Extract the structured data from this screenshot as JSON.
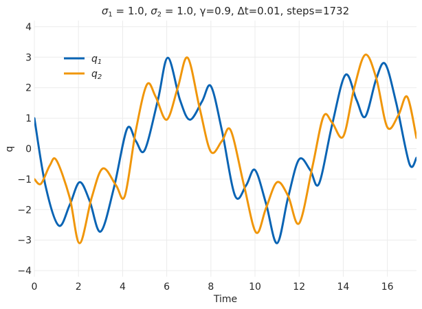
{
  "chart_data": {
    "type": "line",
    "title": "σ₁ = 1.0, σ₂ = 1.0, γ=0.9, Δt=0.01, steps=1732",
    "title_parts": {
      "s1_sym": "σ",
      "s1_sub": "1",
      "s1_val": " = 1.0, ",
      "s2_sym": "σ",
      "s2_sub": "2",
      "s2_val": " = 1.0, γ=0.9, Δt=0.01, steps=1732"
    },
    "xlabel": "Time",
    "ylabel": "q",
    "xlim": [
      0,
      17.32
    ],
    "ylim": [
      -4.2,
      4.2
    ],
    "xticks": [
      0,
      2,
      4,
      6,
      8,
      10,
      12,
      14,
      16
    ],
    "yticks": [
      -4,
      -3,
      -2,
      -1,
      0,
      1,
      2,
      3,
      4
    ],
    "grid": true,
    "legend_position": "upper-left",
    "series": [
      {
        "name": "q1",
        "label_main": "q",
        "label_sub": "1",
        "color": "#0a64b4",
        "x": [
          0,
          0.5,
          1.1,
          1.6,
          2.05,
          2.5,
          3.0,
          3.6,
          4.2,
          4.6,
          5.0,
          5.6,
          6.05,
          6.6,
          7.05,
          7.6,
          8.0,
          8.5,
          9.1,
          9.6,
          10.0,
          10.5,
          11.0,
          11.5,
          12.0,
          12.5,
          12.9,
          13.5,
          14.1,
          14.6,
          15.0,
          15.5,
          15.9,
          16.4,
          17.0,
          17.32
        ],
        "y": [
          1.0,
          -1.2,
          -2.52,
          -1.85,
          -1.1,
          -1.7,
          -2.72,
          -1.3,
          0.65,
          0.25,
          -0.05,
          1.6,
          2.98,
          1.6,
          0.95,
          1.55,
          2.05,
          0.6,
          -1.55,
          -1.2,
          -0.7,
          -1.8,
          -3.1,
          -1.6,
          -0.35,
          -0.7,
          -1.15,
          0.8,
          2.42,
          1.6,
          1.05,
          2.3,
          2.78,
          1.5,
          -0.5,
          -0.3
        ]
      },
      {
        "name": "q2",
        "label_main": "q",
        "label_sub": "2",
        "color": "#f0960a",
        "x": [
          0,
          0.3,
          0.7,
          1.0,
          1.6,
          2.05,
          2.6,
          3.1,
          3.7,
          4.1,
          4.6,
          5.1,
          5.5,
          6.0,
          6.5,
          6.95,
          7.5,
          8.0,
          8.5,
          8.9,
          9.5,
          10.05,
          10.5,
          11.0,
          11.5,
          12.0,
          12.6,
          13.1,
          13.5,
          14.0,
          14.5,
          15.0,
          15.5,
          16.0,
          16.5,
          16.9,
          17.32
        ],
        "y": [
          -1.0,
          -1.15,
          -0.55,
          -0.38,
          -1.6,
          -3.1,
          -1.6,
          -0.65,
          -1.2,
          -1.55,
          0.6,
          2.1,
          1.7,
          0.95,
          2.0,
          2.98,
          1.3,
          -0.1,
          0.25,
          0.6,
          -1.2,
          -2.75,
          -1.95,
          -1.1,
          -1.55,
          -2.45,
          -0.6,
          1.05,
          0.85,
          0.4,
          2.0,
          3.08,
          2.3,
          0.7,
          1.1,
          1.7,
          0.35
        ]
      }
    ]
  }
}
